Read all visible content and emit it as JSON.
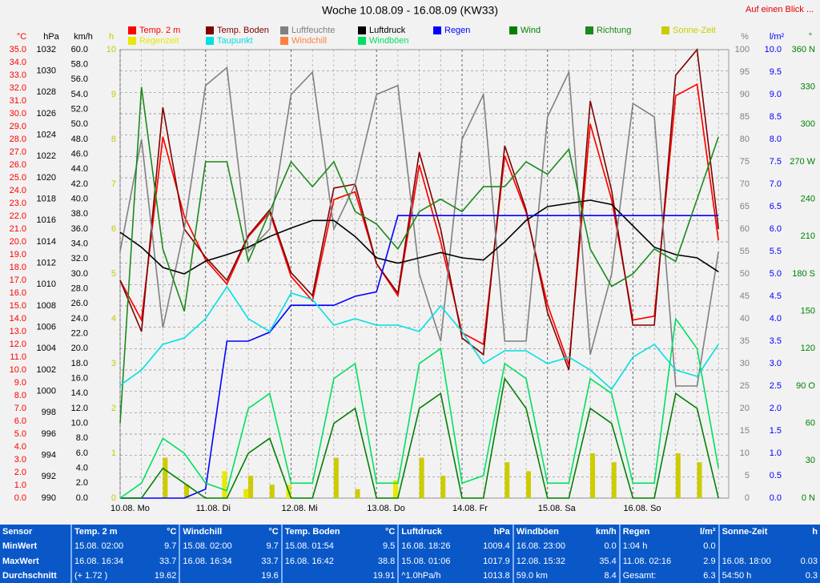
{
  "chart_data": {
    "type": "line",
    "title": "Woche 10.08.09 - 16.08.09 (KW33)",
    "link": "Auf einen Blick ...",
    "xlim": [
      0,
      7.12
    ],
    "xticks": [
      {
        "value": 0,
        "label": "10.08. Mo"
      },
      {
        "value": 1,
        "label": "11.08. Di"
      },
      {
        "value": 2,
        "label": "12.08. Mi"
      },
      {
        "value": 3,
        "label": "13.08. Do"
      },
      {
        "value": 4,
        "label": "14.08. Fr"
      },
      {
        "value": 5,
        "label": "15.08. Sa"
      },
      {
        "value": 6,
        "label": "16.08. So"
      }
    ],
    "x": [
      0,
      0.25,
      0.5,
      0.75,
      1,
      1.25,
      1.5,
      1.75,
      2,
      2.25,
      2.5,
      2.75,
      3,
      3.25,
      3.5,
      3.75,
      4,
      4.25,
      4.5,
      4.75,
      5,
      5.25,
      5.5,
      5.75,
      6,
      6.25,
      6.5,
      6.75,
      7
    ],
    "grid": true,
    "y_axes": [
      {
        "label": "°C",
        "side": "left",
        "color": "#ff0000",
        "ylim": [
          0,
          35
        ],
        "yticks": [
          {
            "value": 0,
            "label": "0.0"
          },
          {
            "value": 1,
            "label": "1.0"
          },
          {
            "value": 2,
            "label": "2.0"
          },
          {
            "value": 3,
            "label": "3.0"
          },
          {
            "value": 4,
            "label": "4.0"
          },
          {
            "value": 5,
            "label": "5.0"
          },
          {
            "value": 6,
            "label": "6.0"
          },
          {
            "value": 7,
            "label": "7.0"
          },
          {
            "value": 8,
            "label": "8.0"
          },
          {
            "value": 9,
            "label": "9.0"
          },
          {
            "value": 10,
            "label": "10.0"
          },
          {
            "value": 11,
            "label": "11.0"
          },
          {
            "value": 12,
            "label": "12.0"
          },
          {
            "value": 13,
            "label": "13.0"
          },
          {
            "value": 14,
            "label": "14.0"
          },
          {
            "value": 15,
            "label": "15.0"
          },
          {
            "value": 16,
            "label": "16.0"
          },
          {
            "value": 17,
            "label": "17.0"
          },
          {
            "value": 18,
            "label": "18.0"
          },
          {
            "value": 19,
            "label": "19.0"
          },
          {
            "value": 20,
            "label": "20.0"
          },
          {
            "value": 21,
            "label": "21.0"
          },
          {
            "value": 22,
            "label": "22.0"
          },
          {
            "value": 23,
            "label": "23.0"
          },
          {
            "value": 24,
            "label": "24.0"
          },
          {
            "value": 25,
            "label": "25.0"
          },
          {
            "value": 26,
            "label": "26.0"
          },
          {
            "value": 27,
            "label": "27.0"
          },
          {
            "value": 28,
            "label": "28.0"
          },
          {
            "value": 29,
            "label": "29.0"
          },
          {
            "value": 30,
            "label": "30.0"
          },
          {
            "value": 31,
            "label": "31.0"
          },
          {
            "value": 32,
            "label": "32.0"
          },
          {
            "value": 33,
            "label": "33.0"
          },
          {
            "value": 34,
            "label": "34.0"
          },
          {
            "value": 35,
            "label": "35.0"
          }
        ]
      },
      {
        "label": "hPa",
        "side": "left",
        "color": "#000000",
        "ylim": [
          990,
          1032
        ],
        "yticks": [
          990,
          992,
          994,
          996,
          998,
          1000,
          1002,
          1004,
          1006,
          1008,
          1010,
          1012,
          1014,
          1016,
          1018,
          1020,
          1022,
          1024,
          1026,
          1028,
          1030,
          1032
        ]
      },
      {
        "label": "km/h",
        "side": "left",
        "color": "#000000",
        "ylim": [
          0,
          60
        ],
        "yticks": [
          {
            "value": 0,
            "label": "0.0"
          },
          {
            "value": 2,
            "label": "2.0"
          },
          {
            "value": 4,
            "label": "4.0"
          },
          {
            "value": 6,
            "label": "6.0"
          },
          {
            "value": 8,
            "label": "8.0"
          },
          {
            "value": 10,
            "label": "10.0"
          },
          {
            "value": 12,
            "label": "12.0"
          },
          {
            "value": 14,
            "label": "14.0"
          },
          {
            "value": 16,
            "label": "16.0"
          },
          {
            "value": 18,
            "label": "18.0"
          },
          {
            "value": 20,
            "label": "20.0"
          },
          {
            "value": 22,
            "label": "22.0"
          },
          {
            "value": 24,
            "label": "24.0"
          },
          {
            "value": 26,
            "label": "26.0"
          },
          {
            "value": 28,
            "label": "28.0"
          },
          {
            "value": 30,
            "label": "30.0"
          },
          {
            "value": 32,
            "label": "32.0"
          },
          {
            "value": 34,
            "label": "34.0"
          },
          {
            "value": 36,
            "label": "36.0"
          },
          {
            "value": 38,
            "label": "38.0"
          },
          {
            "value": 40,
            "label": "40.0"
          },
          {
            "value": 42,
            "label": "42.0"
          },
          {
            "value": 44,
            "label": "44.0"
          },
          {
            "value": 46,
            "label": "46.0"
          },
          {
            "value": 48,
            "label": "48.0"
          },
          {
            "value": 50,
            "label": "50.0"
          },
          {
            "value": 52,
            "label": "52.0"
          },
          {
            "value": 54,
            "label": "54.0"
          },
          {
            "value": 56,
            "label": "56.0"
          },
          {
            "value": 58,
            "label": "58.0"
          },
          {
            "value": 60,
            "label": "60.0"
          }
        ]
      },
      {
        "label": "h",
        "side": "left",
        "color": "#c8c800",
        "ylim": [
          0,
          10
        ],
        "yticks": [
          0,
          1,
          2,
          3,
          4,
          5,
          6,
          7,
          8,
          9,
          10
        ]
      },
      {
        "label": "%",
        "side": "right",
        "color": "#808080",
        "ylim": [
          0,
          100
        ],
        "yticks": [
          0,
          5,
          10,
          15,
          20,
          25,
          30,
          35,
          40,
          45,
          50,
          55,
          60,
          65,
          70,
          75,
          80,
          85,
          90,
          95,
          100
        ]
      },
      {
        "label": "l/m²",
        "side": "right",
        "color": "#0000ff",
        "ylim": [
          0,
          10
        ],
        "yticks": [
          {
            "value": 0,
            "label": "0.0"
          },
          {
            "value": 0.5,
            "label": "0.5"
          },
          {
            "value": 1,
            "label": "1.0"
          },
          {
            "value": 1.5,
            "label": "1.5"
          },
          {
            "value": 2,
            "label": "2.0"
          },
          {
            "value": 2.5,
            "label": "2.5"
          },
          {
            "value": 3,
            "label": "3.0"
          },
          {
            "value": 3.5,
            "label": "3.5"
          },
          {
            "value": 4,
            "label": "4.0"
          },
          {
            "value": 4.5,
            "label": "4.5"
          },
          {
            "value": 5,
            "label": "5.0"
          },
          {
            "value": 5.5,
            "label": "5.5"
          },
          {
            "value": 6,
            "label": "6.0"
          },
          {
            "value": 6.5,
            "label": "6.5"
          },
          {
            "value": 7,
            "label": "7.0"
          },
          {
            "value": 7.5,
            "label": "7.5"
          },
          {
            "value": 8,
            "label": "8.0"
          },
          {
            "value": 8.5,
            "label": "8.5"
          },
          {
            "value": 9,
            "label": "9.0"
          },
          {
            "value": 9.5,
            "label": "9.5"
          },
          {
            "value": 10,
            "label": "10.0"
          }
        ]
      },
      {
        "label": "°",
        "side": "right",
        "color": "#008000",
        "ylim": [
          0,
          360
        ],
        "yticks": [
          {
            "value": 0,
            "label": "0 N"
          },
          30,
          60,
          {
            "value": 90,
            "label": "90 O"
          },
          120,
          150,
          {
            "value": 180,
            "label": "180 S"
          },
          210,
          240,
          {
            "value": 270,
            "label": "270 W"
          },
          300,
          330,
          {
            "value": 360,
            "label": "360 N"
          }
        ]
      }
    ],
    "series": [
      {
        "name": "Temp. 2 m",
        "color": "#ff0000",
        "axis": 0,
        "style": "line",
        "values": [
          17,
          13.9,
          28.2,
          22,
          18.6,
          16.7,
          20.4,
          22.3,
          17.3,
          15.4,
          23.3,
          23.9,
          18.3,
          15.8,
          26,
          20,
          12.9,
          12,
          26.7,
          22.3,
          15.1,
          10.4,
          29.2,
          23.3,
          13.9,
          14.2,
          31.4,
          32.3,
          20.1
        ]
      },
      {
        "name": "Temp. Boden",
        "color": "#800000",
        "axis": 0,
        "style": "line",
        "values": [
          17,
          13,
          30.5,
          21,
          18.8,
          17,
          20.5,
          22.5,
          17.6,
          15.8,
          24.2,
          24.5,
          18.3,
          16,
          27,
          21,
          12.5,
          11.2,
          27.5,
          22.5,
          14.5,
          10,
          31,
          24,
          13.5,
          13.5,
          33,
          35,
          21
        ]
      },
      {
        "name": "Luftfeuchte",
        "color": "#808080",
        "axis": 4,
        "style": "line",
        "values": [
          55,
          80,
          38,
          60,
          92,
          96,
          55,
          60,
          90,
          95,
          60,
          70,
          90,
          92,
          50,
          35,
          80,
          90,
          35,
          35,
          85,
          95,
          32,
          50,
          88,
          85,
          25,
          25,
          55
        ]
      },
      {
        "name": "Luftdruck",
        "color": "#000000",
        "axis": 1,
        "style": "line",
        "values": [
          1014.9,
          1013.5,
          1011.6,
          1011,
          1012.2,
          1012.8,
          1013.5,
          1014.5,
          1015.3,
          1016,
          1016,
          1014.5,
          1012.5,
          1012,
          1012.5,
          1013,
          1012.5,
          1012.3,
          1014,
          1016,
          1017.3,
          1017.6,
          1017.9,
          1017.5,
          1015.5,
          1013.5,
          1012.8,
          1012.5,
          1011.2
        ]
      },
      {
        "name": "Regen",
        "color": "#0000ff",
        "axis": 5,
        "style": "line",
        "values": [
          0,
          0,
          0,
          0,
          0.2,
          3.5,
          3.5,
          3.7,
          4.3,
          4.3,
          4.3,
          4.5,
          4.6,
          6.3,
          6.3,
          6.3,
          6.3,
          6.3,
          6.3,
          6.3,
          6.3,
          6.3,
          6.3,
          6.3,
          6.3,
          6.3,
          6.3,
          6.3,
          6.3
        ]
      },
      {
        "name": "Wind",
        "color": "#008000",
        "axis": 2,
        "style": "line",
        "values": [
          0,
          0,
          4,
          2,
          0,
          0,
          6,
          8,
          0,
          0,
          10,
          12,
          0,
          0,
          12,
          14,
          0,
          0,
          16,
          12,
          0,
          0,
          12,
          10,
          0,
          0,
          14,
          12,
          0
        ]
      },
      {
        "name": "Richtung",
        "color": "#1a8a1a",
        "axis": 6,
        "style": "line",
        "values": [
          60,
          330,
          200,
          150,
          270,
          270,
          190,
          230,
          270,
          250,
          270,
          230,
          220,
          200,
          230,
          240,
          230,
          250,
          250,
          270,
          260,
          280,
          200,
          170,
          180,
          200,
          190,
          240,
          290
        ]
      },
      {
        "name": "Sonne-Zeit",
        "color": "#cccc00",
        "axis": 3,
        "style": "bar",
        "values": [
          0,
          0,
          0.9,
          0.3,
          0,
          0,
          0.5,
          0.3,
          0,
          0,
          0.9,
          0.2,
          0,
          0,
          0.9,
          0.5,
          0,
          0,
          0.8,
          0.6,
          0,
          0,
          1,
          0.8,
          0,
          0,
          1,
          0.8,
          0
        ]
      },
      {
        "name": "Regenzeit",
        "color": "#e8e800",
        "axis": 3,
        "style": "bar",
        "values": [
          0,
          0,
          0,
          0,
          0,
          0.6,
          0.2,
          0,
          0.3,
          0,
          0,
          0,
          0,
          0.4,
          0,
          0,
          0,
          0,
          0,
          0,
          0,
          0,
          0,
          0,
          0,
          0,
          0,
          0,
          0
        ]
      },
      {
        "name": "Taupunkt",
        "color": "#00e0e0",
        "axis": 0,
        "style": "line",
        "values": [
          8.8,
          10,
          12,
          12.5,
          14,
          16.5,
          14,
          13,
          16,
          15.5,
          13.5,
          14,
          13.5,
          13.5,
          13,
          15,
          13,
          10.5,
          11.5,
          11.5,
          10.5,
          11,
          10,
          8.5,
          11,
          12,
          10,
          9.5,
          12
        ]
      },
      {
        "name": "Windchill",
        "color": "#ff8040",
        "axis": 0,
        "style": "line",
        "values": [
          17,
          13.9,
          28.2,
          22,
          18.6,
          16.7,
          20.4,
          22.3,
          17.3,
          15.4,
          23.3,
          23.9,
          18.3,
          15.8,
          26,
          20,
          12.9,
          12,
          26.7,
          22.3,
          15.1,
          10.4,
          29.2,
          23.3,
          13.9,
          14.2,
          31.4,
          32.3,
          20.1
        ]
      },
      {
        "name": "Windböen",
        "color": "#00e060",
        "axis": 2,
        "style": "line",
        "values": [
          0,
          2,
          8,
          6,
          2,
          1,
          12,
          14,
          2,
          2,
          16,
          18,
          2,
          2,
          18,
          20,
          2,
          3,
          18,
          16,
          2,
          2,
          16,
          14,
          2,
          2,
          24,
          20,
          4
        ]
      }
    ]
  },
  "table": {
    "row_labels": [
      "Sensor",
      "MinWert",
      "MaxWert",
      "Durchschnitt"
    ],
    "columns": [
      {
        "name": "Temp. 2 m",
        "unit": "°C",
        "rows": [
          [
            "15.08. 02:00",
            "9.7"
          ],
          [
            "16.08. 16:34",
            "33.7"
          ],
          [
            "(+ 1.72 )",
            "19.62"
          ]
        ]
      },
      {
        "name": "Windchill",
        "unit": "°C",
        "rows": [
          [
            "15.08. 02:00",
            "9.7"
          ],
          [
            "16.08. 16:34",
            "33.7"
          ],
          [
            null,
            "19.6"
          ]
        ]
      },
      {
        "name": "Temp. Boden",
        "unit": "°C",
        "rows": [
          [
            "15.08. 01:54",
            "9.5"
          ],
          [
            "16.08. 16:42",
            "38.8"
          ],
          [
            null,
            "19.91"
          ]
        ]
      },
      {
        "name": "Luftdruck",
        "unit": "hPa",
        "rows": [
          [
            "16.08. 18:26",
            "1009.4"
          ],
          [
            "15.08. 01:06",
            "1017.9"
          ],
          [
            "^1.0hPa/h",
            "1013.8"
          ]
        ]
      },
      {
        "name": "Windböen",
        "unit": "km/h",
        "rows": [
          [
            "16.08. 23:00",
            "0.0"
          ],
          [
            "12.08. 15:32",
            "35.4"
          ],
          [
            "59.0 km",
            "8.4"
          ]
        ]
      },
      {
        "name": "Regen",
        "unit": "l/m²",
        "rows": [
          [
            "1:04 h",
            "0.0"
          ],
          [
            "11.08. 02:16",
            "2.9"
          ],
          [
            "Gesamt:",
            "6.3"
          ]
        ]
      },
      {
        "name": "Sonne-Zeit",
        "unit": "h",
        "rows": [
          [
            null,
            null
          ],
          [
            "16.08. 18:00",
            "0.03"
          ],
          [
            "54:50 h",
            "0.3"
          ]
        ]
      }
    ]
  }
}
